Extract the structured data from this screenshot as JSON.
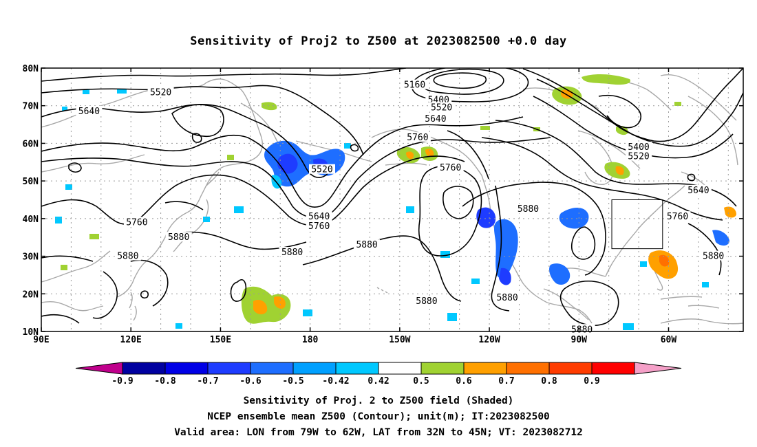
{
  "title": "Sensitivity of Proj2 to Z500 at 2023082500 +0.0 day",
  "map": {
    "lat_ticks": [
      {
        "lat": 80,
        "label": "80N"
      },
      {
        "lat": 70,
        "label": "70N"
      },
      {
        "lat": 60,
        "label": "60N"
      },
      {
        "lat": 50,
        "label": "50N"
      },
      {
        "lat": 40,
        "label": "40N"
      },
      {
        "lat": 30,
        "label": "30N"
      },
      {
        "lat": 20,
        "label": "20N"
      },
      {
        "lat": 10,
        "label": "10N"
      }
    ],
    "lon_ticks": [
      {
        "lon": 90,
        "label": "90E"
      },
      {
        "lon": 120,
        "label": "120E"
      },
      {
        "lon": 150,
        "label": "150E"
      },
      {
        "lon": 180,
        "label": "180"
      },
      {
        "lon": 210,
        "label": "150W"
      },
      {
        "lon": 240,
        "label": "120W"
      },
      {
        "lon": 270,
        "label": "90W"
      },
      {
        "lon": 300,
        "label": "60W"
      }
    ],
    "lon_range": [
      90,
      325
    ],
    "lat_range": [
      10,
      80
    ],
    "valid_box": {
      "lon_min": 281,
      "lon_max": 298,
      "lat_min": 32,
      "lat_max": 45
    },
    "contour_labels": [
      {
        "text": "5520",
        "lon": 130,
        "lat": 73.5
      },
      {
        "text": "5640",
        "lon": 106,
        "lat": 68.5
      },
      {
        "text": "5760",
        "lon": 122,
        "lat": 39
      },
      {
        "text": "5880",
        "lon": 136,
        "lat": 35
      },
      {
        "text": "5880",
        "lon": 119,
        "lat": 30
      },
      {
        "text": "5520",
        "lon": 184,
        "lat": 53
      },
      {
        "text": "5640",
        "lon": 183,
        "lat": 40.5
      },
      {
        "text": "5760",
        "lon": 183,
        "lat": 38
      },
      {
        "text": "5880",
        "lon": 174,
        "lat": 31
      },
      {
        "text": "5880",
        "lon": 199,
        "lat": 33
      },
      {
        "text": "5880",
        "lon": 219,
        "lat": 18
      },
      {
        "text": "5160",
        "lon": 215,
        "lat": 75.5
      },
      {
        "text": "5400",
        "lon": 223,
        "lat": 71.5
      },
      {
        "text": "5520",
        "lon": 224,
        "lat": 69.5
      },
      {
        "text": "5640",
        "lon": 222,
        "lat": 66.5
      },
      {
        "text": "5760",
        "lon": 216,
        "lat": 61.5
      },
      {
        "text": "5760",
        "lon": 227,
        "lat": 53.5
      },
      {
        "text": "5880",
        "lon": 253,
        "lat": 42.5
      },
      {
        "text": "5880",
        "lon": 246,
        "lat": 19
      },
      {
        "text": "5880",
        "lon": 271,
        "lat": 10.5
      },
      {
        "text": "5400",
        "lon": 290,
        "lat": 59
      },
      {
        "text": "5520",
        "lon": 290,
        "lat": 56.5
      },
      {
        "text": "5640",
        "lon": 310,
        "lat": 47.5
      },
      {
        "text": "5760",
        "lon": 303,
        "lat": 40.5
      },
      {
        "text": "5880",
        "lon": 315,
        "lat": 30
      }
    ]
  },
  "colorbar": {
    "labels": [
      "-0.9",
      "-0.8",
      "-0.7",
      "-0.6",
      "-0.5",
      "-0.42",
      "0.42",
      "0.5",
      "0.6",
      "0.7",
      "0.8",
      "0.9"
    ],
    "colors": [
      "#0000a0",
      "#0000e6",
      "#1e3cff",
      "#1e6eff",
      "#00a0ff",
      "#00c8ff",
      "#ffffff",
      "#a0d232",
      "#ffa000",
      "#ff7000",
      "#ff3c00",
      "#ff0000"
    ],
    "low_color": "#c0008c",
    "high_color": "#f5a0c8"
  },
  "captions": {
    "line1": "Sensitivity of Proj. 2 to Z500 field (Shaded)",
    "line2": "NCEP ensemble mean Z500 (Contour); unit(m); IT:2023082500",
    "line3": "Valid area: LON from 79W to 62W, LAT from 32N to 45N; VT: 2023082712"
  }
}
